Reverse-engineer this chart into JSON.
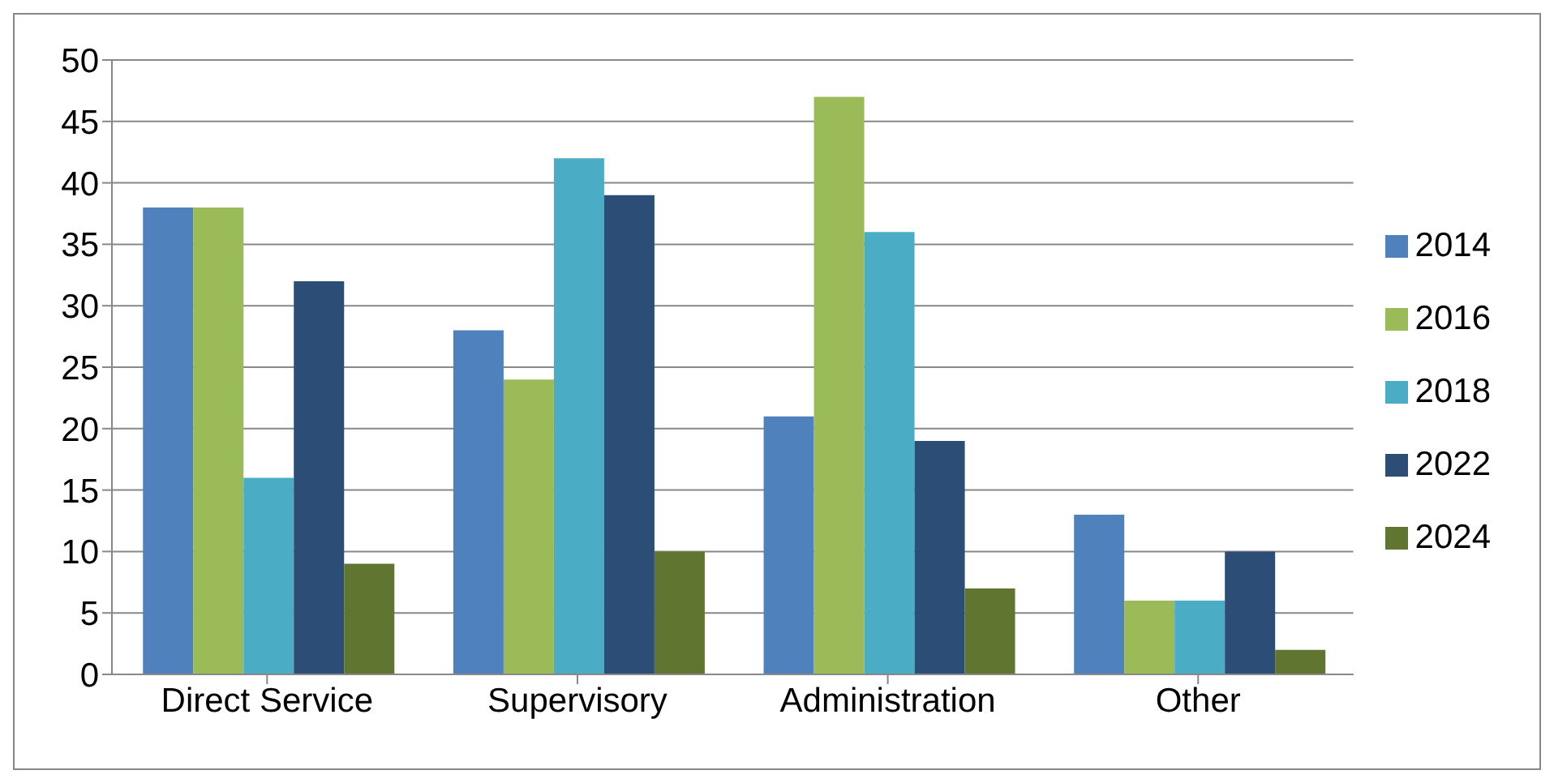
{
  "chart_data": {
    "type": "bar",
    "categories": [
      "Direct Service",
      "Supervisory",
      "Administration",
      "Other"
    ],
    "series": [
      {
        "name": "2014",
        "color": "#4f81bd",
        "values": [
          38,
          28,
          21,
          13
        ]
      },
      {
        "name": "2016",
        "color": "#9bbb59",
        "values": [
          38,
          24,
          47,
          6
        ]
      },
      {
        "name": "2018",
        "color": "#4bacc6",
        "values": [
          16,
          42,
          36,
          6
        ]
      },
      {
        "name": "2022",
        "color": "#2c4d75",
        "values": [
          32,
          39,
          19,
          10
        ]
      },
      {
        "name": "2024",
        "color": "#5f7530",
        "values": [
          9,
          10,
          7,
          2
        ]
      }
    ],
    "ylim": [
      0,
      50
    ],
    "yticks": [
      0,
      5,
      10,
      15,
      20,
      25,
      30,
      35,
      40,
      45,
      50
    ],
    "grid": "y",
    "legend": "right"
  }
}
